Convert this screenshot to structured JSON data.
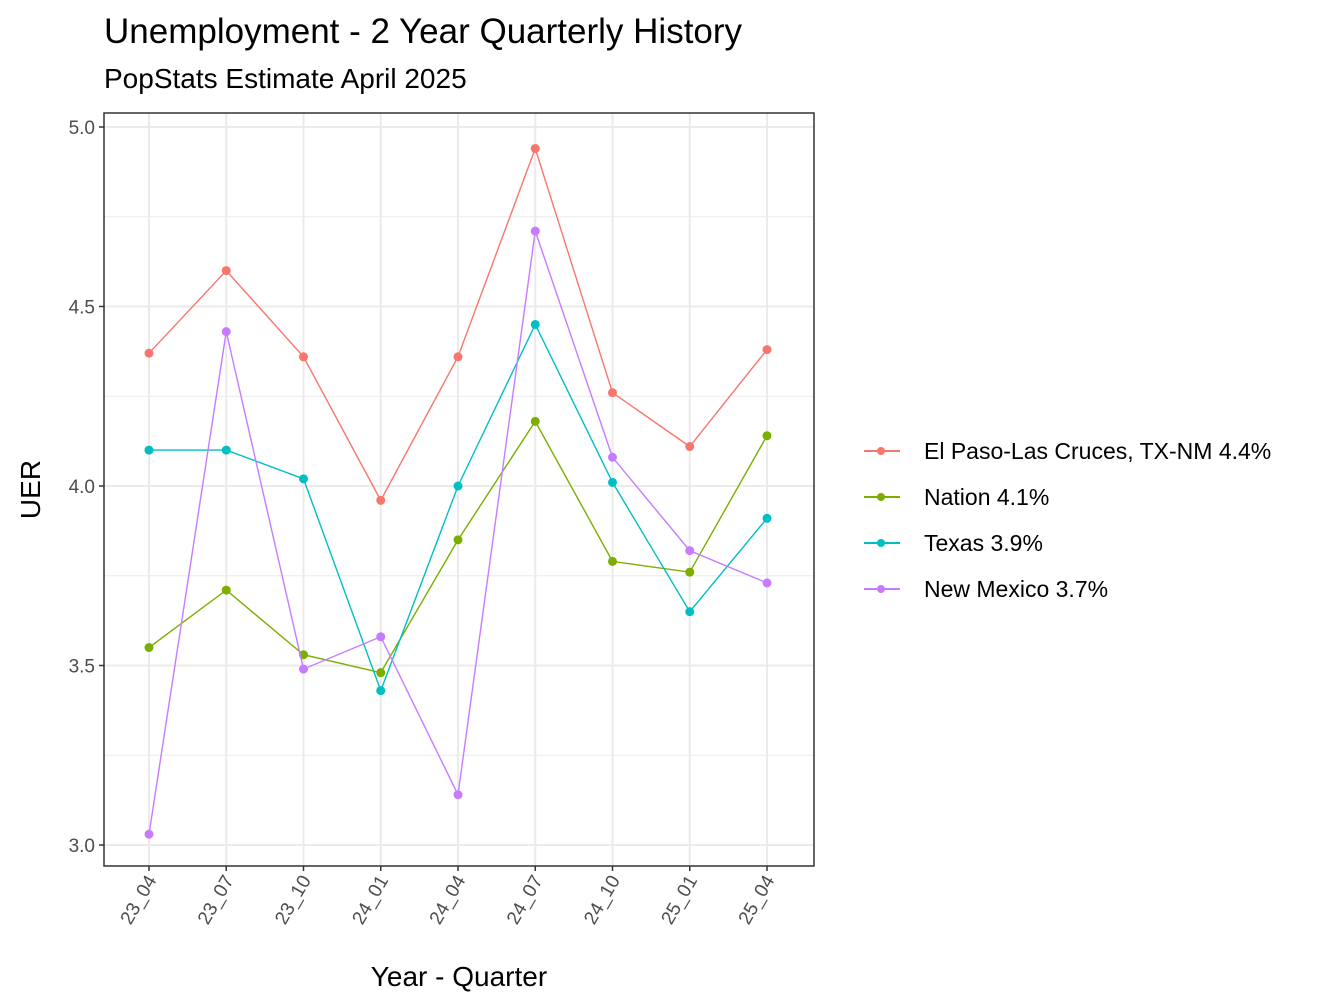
{
  "header": {
    "title": "Unemployment - 2 Year Quarterly History",
    "subtitle": "PopStats Estimate April 2025"
  },
  "axes": {
    "xlabel": "Year - Quarter",
    "ylabel": "UER",
    "yticks": [
      "3.0",
      "3.5",
      "4.0",
      "4.5",
      "5.0"
    ],
    "xticks": [
      "23_04",
      "23_07",
      "23_10",
      "24_01",
      "24_04",
      "24_07",
      "24_10",
      "25_01",
      "25_04"
    ]
  },
  "legend": {
    "items": [
      {
        "label": "El Paso-Las Cruces, TX-NM 4.4%",
        "color": "#F8766D"
      },
      {
        "label": "Nation 4.1%",
        "color": "#7CAE00"
      },
      {
        "label": "Texas 3.9%",
        "color": "#00BFC4"
      },
      {
        "label": "New Mexico 3.7%",
        "color": "#C77CFF"
      }
    ]
  },
  "chart_data": {
    "type": "line",
    "title": "Unemployment - 2 Year Quarterly History",
    "subtitle": "PopStats Estimate April 2025",
    "xlabel": "Year - Quarter",
    "ylabel": "UER",
    "categories": [
      "23_04",
      "23_07",
      "23_10",
      "24_01",
      "24_04",
      "24_07",
      "24_10",
      "25_01",
      "25_04"
    ],
    "ylim": [
      2.95,
      5.03
    ],
    "yticks": [
      3.0,
      3.5,
      4.0,
      4.5,
      5.0
    ],
    "grid": true,
    "legend_position": "right",
    "series": [
      {
        "name": "El Paso-Las Cruces, TX-NM 4.4%",
        "color": "#F8766D",
        "values": [
          4.37,
          4.6,
          4.36,
          3.96,
          4.36,
          4.94,
          4.26,
          4.11,
          4.38
        ]
      },
      {
        "name": "Nation 4.1%",
        "color": "#7CAE00",
        "values": [
          3.55,
          3.71,
          3.53,
          3.48,
          3.85,
          4.18,
          3.79,
          3.76,
          4.14
        ]
      },
      {
        "name": "Texas 3.9%",
        "color": "#00BFC4",
        "values": [
          4.1,
          4.1,
          4.02,
          3.43,
          4.0,
          4.45,
          4.01,
          3.65,
          3.91
        ]
      },
      {
        "name": "New Mexico 3.7%",
        "color": "#C77CFF",
        "values": [
          3.03,
          4.43,
          3.49,
          3.58,
          3.14,
          4.71,
          4.08,
          3.82,
          3.73
        ]
      }
    ]
  }
}
